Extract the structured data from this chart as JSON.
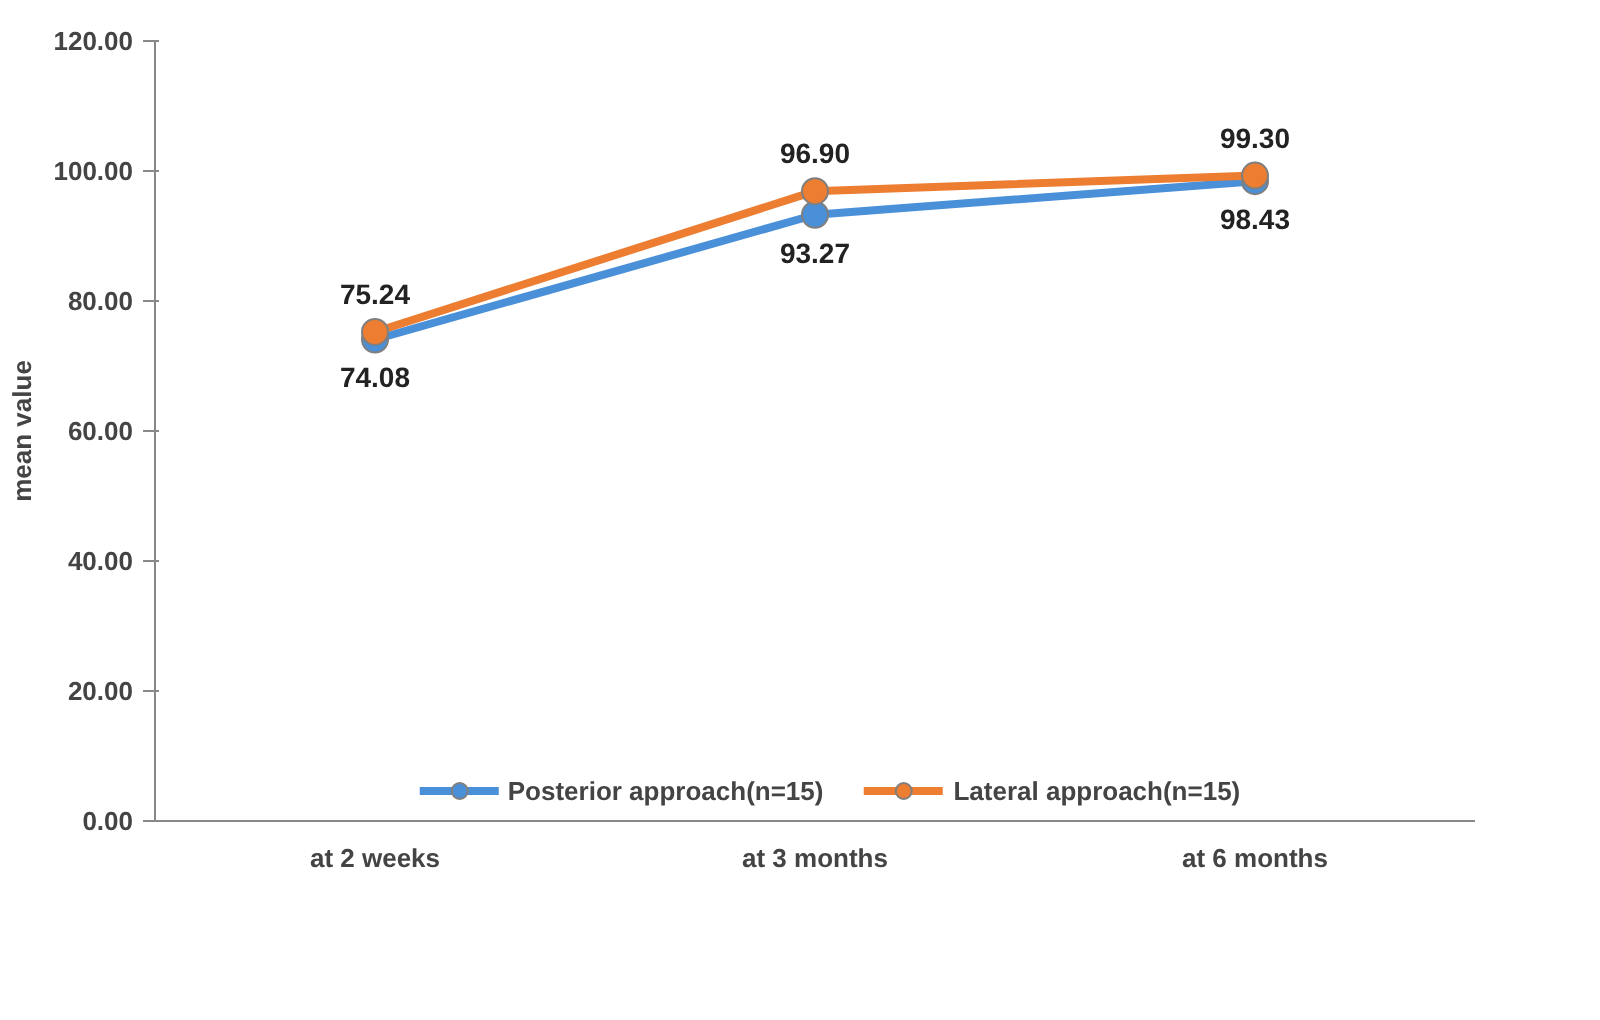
{
  "chart_data": {
    "type": "line",
    "ylabel": "mean value",
    "categories": [
      "at 2 weeks",
      "at 3 months",
      "at 6 months"
    ],
    "series": [
      {
        "name": "Posterior approach(n=15)",
        "color": "#4a90d9",
        "values": [
          74.08,
          93.27,
          98.43
        ],
        "value_labels": [
          "74.08",
          "93.27",
          "98.43"
        ]
      },
      {
        "name": "Lateral approach(n=15)",
        "color": "#ed7d31",
        "values": [
          75.24,
          96.9,
          99.3
        ],
        "value_labels": [
          "75.24",
          "96.90",
          "99.30"
        ]
      }
    ],
    "ylim": [
      0,
      120
    ],
    "yticks": [
      {
        "value": 0,
        "label": "0.00"
      },
      {
        "value": 20,
        "label": "20.00"
      },
      {
        "value": 40,
        "label": "40.00"
      },
      {
        "value": 60,
        "label": "60.00"
      },
      {
        "value": 80,
        "label": "80.00"
      },
      {
        "value": 100,
        "label": "100.00"
      },
      {
        "value": 120,
        "label": "120.00"
      }
    ],
    "marker": "circle",
    "line_style": "solid",
    "legend": "bottom"
  }
}
